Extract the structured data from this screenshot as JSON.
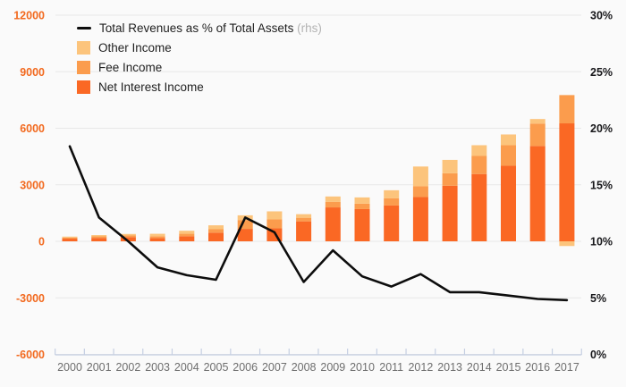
{
  "colors": {
    "background": "#fafafa",
    "gridline": "#e8e8e8",
    "axis_line": "#c5cfe2",
    "left_axis_label": "#f2691e",
    "right_axis_label": "#17171a",
    "year_label": "#6e6e6e",
    "line_series": "#0d0d0d",
    "net_interest_income": "#fa6824",
    "fee_income": "#fb9c4d",
    "other_income": "#fcc47c",
    "legend_text": "#1f1f1f",
    "legend_rhs": "#b3b3b3"
  },
  "legend": [
    {
      "type": "line",
      "label": "Total Revenues as % of Total Assets",
      "suffix": " (rhs)",
      "color": "#0d0d0d"
    },
    {
      "type": "swatch",
      "label": "Other Income",
      "suffix": "",
      "color": "#fcc47c"
    },
    {
      "type": "swatch",
      "label": "Fee Income",
      "suffix": "",
      "color": "#fb9c4d"
    },
    {
      "type": "swatch",
      "label": "Net Interest Income",
      "suffix": "",
      "color": "#fa6824"
    }
  ],
  "chart_data": {
    "type": "combo: stacked bar + line",
    "categories": [
      "2000",
      "2001",
      "2002",
      "2003",
      "2004",
      "2005",
      "2006",
      "2007",
      "2008",
      "2009",
      "2010",
      "2011",
      "2012",
      "2013",
      "2014",
      "2015",
      "2016",
      "2017"
    ],
    "series": [
      {
        "name": "Net Interest Income",
        "type": "bar",
        "axis": "left",
        "color": "#fa6824",
        "values": [
          140,
          180,
          220,
          170,
          270,
          460,
          660,
          690,
          1060,
          1800,
          1710,
          1900,
          2350,
          2950,
          3570,
          4010,
          5060,
          6260
        ]
      },
      {
        "name": "Fee Income",
        "type": "bar",
        "axis": "left",
        "color": "#fb9c4d",
        "values": [
          60,
          80,
          90,
          100,
          130,
          180,
          470,
          475,
          190,
          290,
          290,
          380,
          570,
          660,
          960,
          1090,
          1190,
          1500
        ]
      },
      {
        "name": "Other Income",
        "type": "bar",
        "axis": "left",
        "color": "#fcc47c",
        "values": [
          50,
          70,
          80,
          130,
          160,
          210,
          250,
          425,
          190,
          290,
          330,
          430,
          1050,
          710,
          570,
          570,
          240,
          -250
        ]
      },
      {
        "name": "Total Revenues as % of Total Assets",
        "type": "line",
        "axis": "right",
        "color": "#0d0d0d",
        "values": [
          18.4,
          12.1,
          10.0,
          7.7,
          7.0,
          6.6,
          12.1,
          10.8,
          6.4,
          9.2,
          6.9,
          6.0,
          7.1,
          5.5,
          5.5,
          5.2,
          4.9,
          4.8
        ]
      }
    ],
    "left_axis": {
      "min": -6000,
      "max": 12000,
      "tick_values": [
        12000,
        9000,
        6000,
        3000,
        0,
        -3000,
        -6000
      ],
      "tick_labels": [
        "12000",
        "9000",
        "6000",
        "3000",
        "0",
        "-3000",
        "-6000"
      ]
    },
    "right_axis": {
      "min": 0,
      "max": 30,
      "tick_values": [
        30,
        25,
        20,
        15,
        10,
        5,
        0
      ],
      "tick_labels": [
        "30%",
        "25%",
        "20%",
        "15%",
        "10%",
        "5%",
        "0%"
      ]
    },
    "grid": "horizontal only",
    "legend_position": "top-left inside plot",
    "bar_stack_order_bottom_to_top": [
      "Net Interest Income",
      "Fee Income",
      "Other Income"
    ]
  }
}
